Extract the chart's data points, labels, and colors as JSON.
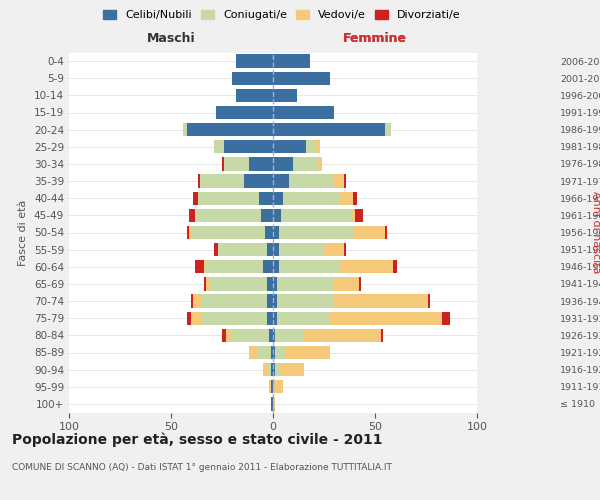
{
  "age_groups": [
    "100+",
    "95-99",
    "90-94",
    "85-89",
    "80-84",
    "75-79",
    "70-74",
    "65-69",
    "60-64",
    "55-59",
    "50-54",
    "45-49",
    "40-44",
    "35-39",
    "30-34",
    "25-29",
    "20-24",
    "15-19",
    "10-14",
    "5-9",
    "0-4"
  ],
  "birth_years": [
    "≤ 1910",
    "1911-1915",
    "1916-1920",
    "1921-1925",
    "1926-1930",
    "1931-1935",
    "1936-1940",
    "1941-1945",
    "1946-1950",
    "1951-1955",
    "1956-1960",
    "1961-1965",
    "1966-1970",
    "1971-1975",
    "1976-1980",
    "1981-1985",
    "1986-1990",
    "1991-1995",
    "1996-2000",
    "2001-2005",
    "2006-2010"
  ],
  "maschi": {
    "celibi": [
      1,
      1,
      1,
      1,
      2,
      3,
      3,
      3,
      5,
      3,
      4,
      6,
      7,
      14,
      12,
      24,
      42,
      28,
      18,
      20,
      18
    ],
    "coniugati": [
      0,
      0,
      2,
      7,
      18,
      32,
      32,
      28,
      28,
      24,
      36,
      32,
      30,
      22,
      12,
      5,
      2,
      0,
      0,
      0,
      0
    ],
    "vedovi": [
      0,
      1,
      2,
      4,
      3,
      5,
      4,
      2,
      1,
      0,
      1,
      0,
      0,
      0,
      0,
      0,
      0,
      0,
      0,
      0,
      0
    ],
    "divorziati": [
      0,
      0,
      0,
      0,
      2,
      2,
      1,
      1,
      4,
      2,
      1,
      3,
      2,
      1,
      1,
      0,
      0,
      0,
      0,
      0,
      0
    ]
  },
  "femmine": {
    "nubili": [
      0,
      0,
      1,
      1,
      1,
      2,
      2,
      2,
      3,
      3,
      3,
      4,
      5,
      8,
      10,
      16,
      55,
      30,
      12,
      28,
      18
    ],
    "coniugate": [
      0,
      0,
      2,
      5,
      14,
      26,
      28,
      28,
      30,
      22,
      36,
      34,
      28,
      22,
      12,
      5,
      3,
      0,
      0,
      0,
      0
    ],
    "vedove": [
      1,
      5,
      12,
      22,
      38,
      55,
      46,
      12,
      26,
      10,
      16,
      2,
      6,
      5,
      2,
      2,
      0,
      0,
      0,
      0,
      0
    ],
    "divorziate": [
      0,
      0,
      0,
      0,
      1,
      4,
      1,
      1,
      2,
      1,
      1,
      4,
      2,
      1,
      0,
      0,
      0,
      0,
      0,
      0,
      0
    ]
  },
  "colors": {
    "celibi_nubili": "#3B6FA0",
    "coniugati": "#C8D9A8",
    "vedovi": "#F5C97A",
    "divorziati": "#CC2222"
  },
  "xlim": 100,
  "title": "Popolazione per età, sesso e stato civile - 2011",
  "subtitle": "COMUNE DI SCANNO (AQ) - Dati ISTAT 1° gennaio 2011 - Elaborazione TUTTITALIA.IT",
  "ylabel_left": "Fasce di età",
  "ylabel_right": "Anni di nascita",
  "xlabel_maschi": "Maschi",
  "xlabel_femmine": "Femmine",
  "legend_labels": [
    "Celibi/Nubili",
    "Coniugati/e",
    "Vedovi/e",
    "Divorziati/e"
  ],
  "bg_color": "#f0f0f0",
  "bar_bg_color": "#ffffff"
}
